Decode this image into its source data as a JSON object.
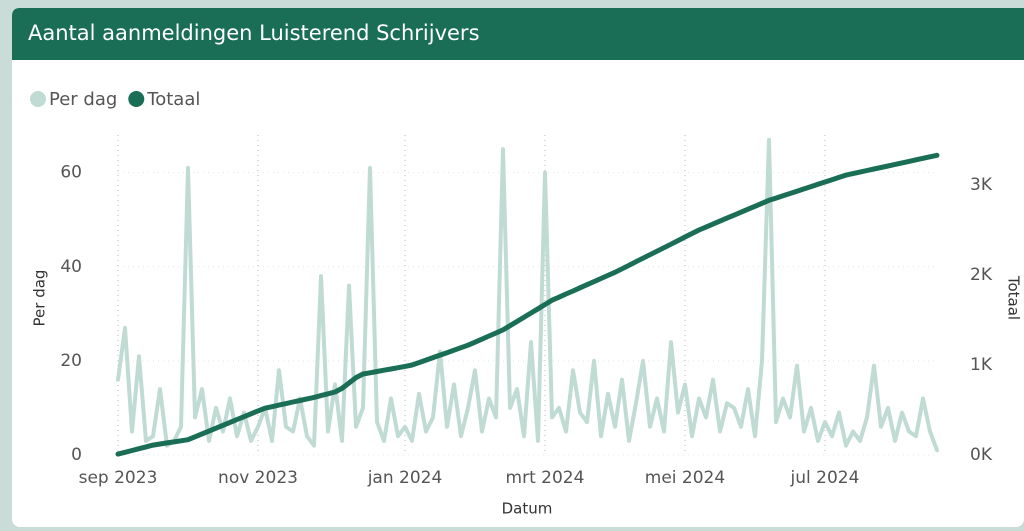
{
  "chart_data": {
    "type": "line",
    "title": "Aantal aanmeldingen Luisterend Schrijvers",
    "x_label": "Datum",
    "y_label": "Per dag",
    "y2_label": "Totaal",
    "categories": [
      "sep 2023",
      null,
      null,
      null,
      null,
      null,
      null,
      null,
      null,
      null,
      null,
      null,
      null,
      null,
      null,
      null,
      null,
      null,
      null,
      null,
      "nov 2023",
      null,
      null,
      null,
      null,
      null,
      null,
      null,
      null,
      null,
      null,
      null,
      null,
      null,
      null,
      null,
      null,
      null,
      null,
      null,
      null,
      "jan 2024",
      null,
      null,
      null,
      null,
      null,
      null,
      null,
      null,
      null,
      null,
      null,
      null,
      null,
      null,
      null,
      null,
      null,
      null,
      null,
      "mrt 2024",
      null,
      null,
      null,
      null,
      null,
      null,
      null,
      null,
      null,
      null,
      null,
      null,
      null,
      null,
      null,
      null,
      null,
      null,
      null,
      "mei 2024",
      null,
      null,
      null,
      null,
      null,
      null,
      null,
      null,
      null,
      null,
      null,
      null,
      null,
      null,
      null,
      null,
      null,
      null,
      null,
      "jul 2024",
      null,
      null,
      null,
      null,
      null,
      null,
      null,
      null,
      null,
      null,
      null,
      null,
      null,
      null,
      null,
      null
    ],
    "series": [
      {
        "name": "Per dag",
        "color": "#c0dbd4",
        "axis": "y",
        "values": [
          16,
          27,
          5,
          21,
          3,
          4,
          14,
          2,
          3,
          6,
          61,
          8,
          14,
          3,
          10,
          5,
          12,
          4,
          9,
          3,
          6,
          10,
          3,
          18,
          6,
          5,
          12,
          4,
          2,
          38,
          5,
          15,
          3,
          36,
          6,
          10,
          61,
          7,
          3,
          12,
          4,
          6,
          3,
          13,
          5,
          8,
          22,
          6,
          15,
          4,
          10,
          18,
          5,
          12,
          8,
          65,
          10,
          14,
          4,
          24,
          3,
          60,
          8,
          10,
          5,
          18,
          9,
          7,
          20,
          4,
          13,
          6,
          16,
          3,
          11,
          20,
          6,
          12,
          5,
          24,
          9,
          15,
          4,
          12,
          8,
          16,
          5,
          11,
          10,
          6,
          14,
          4,
          20,
          67,
          7,
          12,
          8,
          19,
          5,
          10,
          3,
          7,
          4,
          9,
          2,
          5,
          3,
          8,
          19,
          6,
          10,
          3,
          9,
          5,
          4,
          12,
          5,
          1
        ]
      },
      {
        "name": "Totaal",
        "color": "#1a6e55",
        "axis": "y2",
        "values": [
          10,
          30,
          50,
          70,
          90,
          110,
          122,
          134,
          146,
          158,
          170,
          202,
          234,
          266,
          298,
          330,
          362,
          394,
          426,
          458,
          490,
          520,
          537,
          554,
          571,
          589,
          606,
          623,
          640,
          660,
          680,
          700,
          740,
          800,
          860,
          900,
          914,
          928,
          942,
          956,
          970,
          985,
          1000,
          1027,
          1055,
          1082,
          1110,
          1137,
          1165,
          1192,
          1220,
          1254,
          1288,
          1322,
          1356,
          1390,
          1437,
          1484,
          1531,
          1578,
          1625,
          1672,
          1720,
          1754,
          1789,
          1823,
          1858,
          1892,
          1927,
          1961,
          1996,
          2030,
          2069,
          2108,
          2148,
          2187,
          2226,
          2265,
          2304,
          2343,
          2383,
          2422,
          2461,
          2500,
          2533,
          2566,
          2599,
          2632,
          2665,
          2698,
          2731,
          2764,
          2797,
          2830,
          2855,
          2881,
          2906,
          2932,
          2957,
          2983,
          3008,
          3034,
          3059,
          3085,
          3110,
          3127,
          3144,
          3161,
          3178,
          3195,
          3212,
          3229,
          3246,
          3263,
          3280,
          3297,
          3314,
          3330
        ]
      }
    ],
    "ylim": [
      0,
      68
    ],
    "yticks": [
      0,
      20,
      40,
      60
    ],
    "y2lim": [
      0,
      3556
    ],
    "y2ticks": [
      {
        "value": 0,
        "label": "0K"
      },
      {
        "value": 1000,
        "label": "1K"
      },
      {
        "value": 2000,
        "label": "2K"
      },
      {
        "value": 3000,
        "label": "3K"
      }
    ],
    "grid": true,
    "legend": "top-left"
  }
}
